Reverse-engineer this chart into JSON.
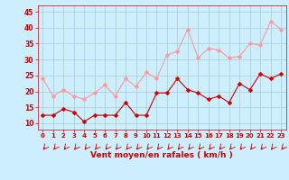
{
  "x": [
    0,
    1,
    2,
    3,
    4,
    5,
    6,
    7,
    8,
    9,
    10,
    11,
    12,
    13,
    14,
    15,
    16,
    17,
    18,
    19,
    20,
    21,
    22,
    23
  ],
  "wind_mean": [
    12.5,
    12.5,
    14.5,
    13.5,
    10.5,
    12.5,
    12.5,
    12.5,
    16.5,
    12.5,
    12.5,
    19.5,
    19.5,
    24.0,
    20.5,
    19.5,
    17.5,
    18.5,
    16.5,
    22.5,
    20.5,
    25.5,
    24.0,
    25.5
  ],
  "wind_gust": [
    24.0,
    18.5,
    20.5,
    18.5,
    17.5,
    19.5,
    22.0,
    18.5,
    24.0,
    21.5,
    26.0,
    24.0,
    31.5,
    32.5,
    39.5,
    30.5,
    33.5,
    33.0,
    30.5,
    31.0,
    35.0,
    34.5,
    42.0,
    39.5
  ],
  "mean_color": "#cc0000",
  "gust_color": "#ff9999",
  "bg_color": "#cceeff",
  "grid_color": "#aacccc",
  "axis_color": "#cc0000",
  "tick_color": "#cc0000",
  "xlabel": "Vent moyen/en rafales ( km/h )",
  "ylim": [
    8,
    47
  ],
  "yticks": [
    10,
    15,
    20,
    25,
    30,
    35,
    40,
    45
  ],
  "xticks": [
    0,
    1,
    2,
    3,
    4,
    5,
    6,
    7,
    8,
    9,
    10,
    11,
    12,
    13,
    14,
    15,
    16,
    17,
    18,
    19,
    20,
    21,
    22,
    23
  ],
  "markersize": 2.5,
  "linewidth": 0.8
}
